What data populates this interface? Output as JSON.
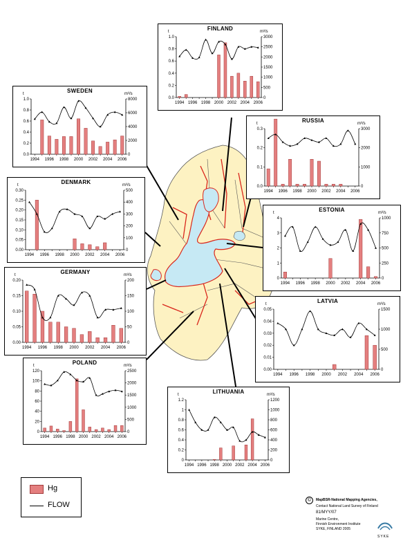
{
  "legend": {
    "bar_label": "Hg",
    "line_label": "FLOW"
  },
  "credits": {
    "symbol": "©",
    "lines": [
      "MapBSR-National Mapping Agencies,",
      "Contact National Land Survey of Finland",
      "81/MYY/07",
      "Marine Centre,",
      "Finnish Environment Institute",
      "SYKE, FINLAND 2005"
    ],
    "logo_text": "SYKE"
  },
  "colors": {
    "bar": "#e47f7f",
    "bar_stroke": "#a23a3a",
    "sea": "#c6e9f4",
    "land": "#fdf2c2",
    "border": "#d9261c"
  },
  "chart_data": [
    {
      "type": "bar+line",
      "title": "FINLAND",
      "left_unit": "t",
      "right_unit": "m³/s",
      "x": [
        1994,
        1995,
        1996,
        1997,
        1998,
        1999,
        2000,
        2001,
        2002,
        2003,
        2004,
        2005,
        2006
      ],
      "xticks": [
        "1994",
        "1996",
        "1998",
        "2000",
        "2002",
        "2004",
        "2006"
      ],
      "ylim": [
        0,
        1.0
      ],
      "yticks": [
        "0.0",
        "0.2",
        "0.4",
        "0.6",
        "0.8",
        "1.0"
      ],
      "y2lim": [
        0,
        3000
      ],
      "y2ticks": [
        "0",
        "500",
        "1000",
        "1500",
        "2000",
        "2500",
        "3000"
      ],
      "hg": [
        0.02,
        0.05,
        0,
        0,
        0,
        0,
        0.7,
        0.9,
        0.35,
        0.4,
        0.27,
        0.35,
        0.26
      ],
      "flow": [
        2030,
        2350,
        1950,
        1980,
        2850,
        2180,
        2750,
        2620,
        1900,
        2500,
        2400,
        2500,
        2460
      ]
    },
    {
      "type": "bar+line",
      "title": "SWEDEN",
      "left_unit": "t",
      "right_unit": "m³/s",
      "x": [
        1994,
        1995,
        1996,
        1997,
        1998,
        1999,
        2000,
        2001,
        2002,
        2003,
        2004,
        2005,
        2006
      ],
      "xticks": [
        "1994",
        "1996",
        "1998",
        "2000",
        "2002",
        "2004",
        "2006"
      ],
      "ylim": [
        0,
        1.0
      ],
      "yticks": [
        "0.0",
        "0.2",
        "0.4",
        "0.6",
        "0.8",
        "1.0"
      ],
      "y2lim": [
        0,
        8000
      ],
      "y2ticks": [
        "0",
        "2000",
        "4000",
        "6000",
        "8000"
      ],
      "hg": [
        0,
        0.62,
        0.33,
        0.27,
        0.32,
        0.32,
        0.64,
        0.47,
        0.24,
        0.14,
        0.22,
        0.26,
        0.33
      ],
      "flow": [
        5100,
        6100,
        4700,
        4500,
        6800,
        5200,
        7700,
        6700,
        5200,
        4000,
        5700,
        6100,
        5700
      ]
    },
    {
      "type": "bar+line",
      "title": "RUSSIA",
      "left_unit": "t",
      "right_unit": "m³/s",
      "x": [
        1994,
        1995,
        1996,
        1997,
        1998,
        1999,
        2000,
        2001,
        2002,
        2003,
        2004,
        2005,
        2006
      ],
      "xticks": [
        "1994",
        "1996",
        "1998",
        "2000",
        "2002",
        "2004",
        "2006"
      ],
      "ylim": [
        0,
        0.3
      ],
      "yticks": [
        "0.0",
        "0.1",
        "0.2",
        "0.3"
      ],
      "y2lim": [
        0,
        3000
      ],
      "y2ticks": [
        "0",
        "1000",
        "2000",
        "3000"
      ],
      "hg": [
        0.09,
        0.35,
        0.01,
        0.14,
        0.01,
        0.01,
        0.14,
        0.13,
        0.01,
        0.01,
        0.01,
        0,
        0
      ],
      "flow": [
        2500,
        2700,
        2300,
        2100,
        2200,
        2500,
        2400,
        2300,
        2500,
        2100,
        2200,
        2900,
        2200
      ]
    },
    {
      "type": "bar+line",
      "title": "DENMARK",
      "left_unit": "t",
      "right_unit": "m³/s",
      "x": [
        1994,
        1995,
        1996,
        1997,
        1998,
        1999,
        2000,
        2001,
        2002,
        2003,
        2004,
        2005,
        2006
      ],
      "xticks": [
        "1994",
        "1996",
        "1998",
        "2000",
        "2002",
        "2004",
        "2006"
      ],
      "ylim": [
        0,
        0.3
      ],
      "yticks": [
        "0.00",
        "0.05",
        "0.10",
        "0.15",
        "0.20",
        "0.25",
        "0.30"
      ],
      "y2lim": [
        0,
        500
      ],
      "y2ticks": [
        "0",
        "100",
        "200",
        "300",
        "400",
        "500"
      ],
      "hg": [
        0,
        0.25,
        0,
        0,
        0,
        0,
        0.055,
        0.03,
        0.025,
        0.015,
        0.035,
        0,
        0
      ],
      "flow": [
        400,
        300,
        150,
        180,
        320,
        340,
        300,
        280,
        180,
        280,
        260,
        300,
        320
      ]
    },
    {
      "type": "bar+line",
      "title": "ESTONIA",
      "left_unit": "t",
      "right_unit": "m³/s",
      "x": [
        1994,
        1995,
        1996,
        1997,
        1998,
        1999,
        2000,
        2001,
        2002,
        2003,
        2004,
        2005,
        2006
      ],
      "xticks": [
        "1994",
        "1996",
        "1998",
        "2000",
        "2002",
        "2004",
        "2006"
      ],
      "ylim": [
        0,
        4
      ],
      "yticks": [
        "0",
        "1",
        "2",
        "3",
        "4"
      ],
      "y2lim": [
        0,
        1000
      ],
      "y2ticks": [
        "0",
        "250",
        "500",
        "750",
        "1000"
      ],
      "hg": [
        0.4,
        0,
        0,
        0,
        0,
        0,
        1.3,
        0,
        0,
        0,
        3.9,
        0.75,
        0.1
      ],
      "flow": [
        700,
        850,
        450,
        600,
        850,
        650,
        550,
        600,
        800,
        450,
        900,
        800,
        500
      ]
    },
    {
      "type": "bar+line",
      "title": "GERMANY",
      "left_unit": "t",
      "right_unit": "m³/s",
      "x": [
        1994,
        1995,
        1996,
        1997,
        1998,
        1999,
        2000,
        2001,
        2002,
        2003,
        2004,
        2005,
        2006
      ],
      "xticks": [
        "1994",
        "1996",
        "1998",
        "2000",
        "2002",
        "2004",
        "2006"
      ],
      "ylim": [
        0,
        0.2
      ],
      "yticks": [
        "0.00",
        "0.05",
        "0.10",
        "0.15",
        "0.20"
      ],
      "y2lim": [
        0,
        200
      ],
      "y2ticks": [
        "0",
        "50",
        "100",
        "150",
        "200"
      ],
      "hg": [
        0.165,
        0.155,
        0.1,
        0.065,
        0.065,
        0.05,
        0.045,
        0.025,
        0.035,
        0.015,
        0.015,
        0.055,
        0.045
      ],
      "flow": [
        185,
        170,
        80,
        80,
        150,
        140,
        120,
        160,
        150,
        80,
        105,
        105,
        110
      ]
    },
    {
      "type": "bar+line",
      "title": "LATVIA",
      "left_unit": "t",
      "right_unit": "m³/s",
      "x": [
        1994,
        1995,
        1996,
        1997,
        1998,
        1999,
        2000,
        2001,
        2002,
        2003,
        2004,
        2005,
        2006
      ],
      "xticks": [
        "1994",
        "1996",
        "1998",
        "2000",
        "2002",
        "2004",
        "2006"
      ],
      "ylim": [
        0,
        0.05
      ],
      "yticks": [
        "0.00",
        "0.01",
        "0.02",
        "0.03",
        "0.04",
        "0.05"
      ],
      "y2lim": [
        0,
        1500
      ],
      "y2ticks": [
        "0",
        "500",
        "1000",
        "1500"
      ],
      "hg": [
        0,
        0,
        0,
        0,
        0,
        0,
        0,
        0.004,
        0,
        0,
        0,
        0.028,
        0.02
      ],
      "flow": [
        1150,
        1000,
        600,
        1000,
        1450,
        1000,
        900,
        850,
        1000,
        800,
        1150,
        1000,
        850
      ]
    },
    {
      "type": "bar+line",
      "title": "POLAND",
      "left_unit": "t",
      "right_unit": "m³/s",
      "x": [
        1994,
        1995,
        1996,
        1997,
        1998,
        1999,
        2000,
        2001,
        2002,
        2003,
        2004,
        2005,
        2006
      ],
      "xticks": [
        "1994",
        "1996",
        "1998",
        "2000",
        "2002",
        "2004",
        "2006"
      ],
      "ylim": [
        0,
        120
      ],
      "yticks": [
        "0",
        "20",
        "40",
        "60",
        "80",
        "100",
        "120"
      ],
      "y2lim": [
        0,
        2500
      ],
      "y2ticks": [
        "0",
        "500",
        "1000",
        "1500",
        "2000",
        "2500"
      ],
      "hg": [
        7,
        11,
        5,
        2,
        20,
        104,
        43,
        9,
        4,
        7,
        4,
        12,
        12
      ],
      "flow": [
        1950,
        1900,
        2100,
        2450,
        2350,
        2100,
        2050,
        2200,
        1500,
        1550,
        1650,
        1700,
        1650
      ]
    },
    {
      "type": "bar+line",
      "title": "LITHUANIA",
      "left_unit": "t",
      "right_unit": "m³/s",
      "x": [
        1994,
        1995,
        1996,
        1997,
        1998,
        1999,
        2000,
        2001,
        2002,
        2003,
        2004,
        2005,
        2006
      ],
      "xticks": [
        "1994",
        "1996",
        "1998",
        "2000",
        "2002",
        "2004",
        "2006"
      ],
      "ylim": [
        0,
        1.2
      ],
      "yticks": [
        "0",
        "0.2",
        "0.4",
        "0.6",
        "0.8",
        "1",
        "1.2"
      ],
      "y2lim": [
        0,
        1200
      ],
      "y2ticks": [
        "0",
        "200",
        "400",
        "600",
        "800",
        "1000",
        "1200"
      ],
      "hg": [
        0,
        0,
        0,
        0,
        0.01,
        0.24,
        0,
        0.28,
        0,
        0.3,
        0.82,
        0,
        0
      ],
      "flow": [
        1000,
        750,
        600,
        600,
        850,
        750,
        600,
        650,
        380,
        400,
        560,
        500,
        450
      ]
    }
  ]
}
